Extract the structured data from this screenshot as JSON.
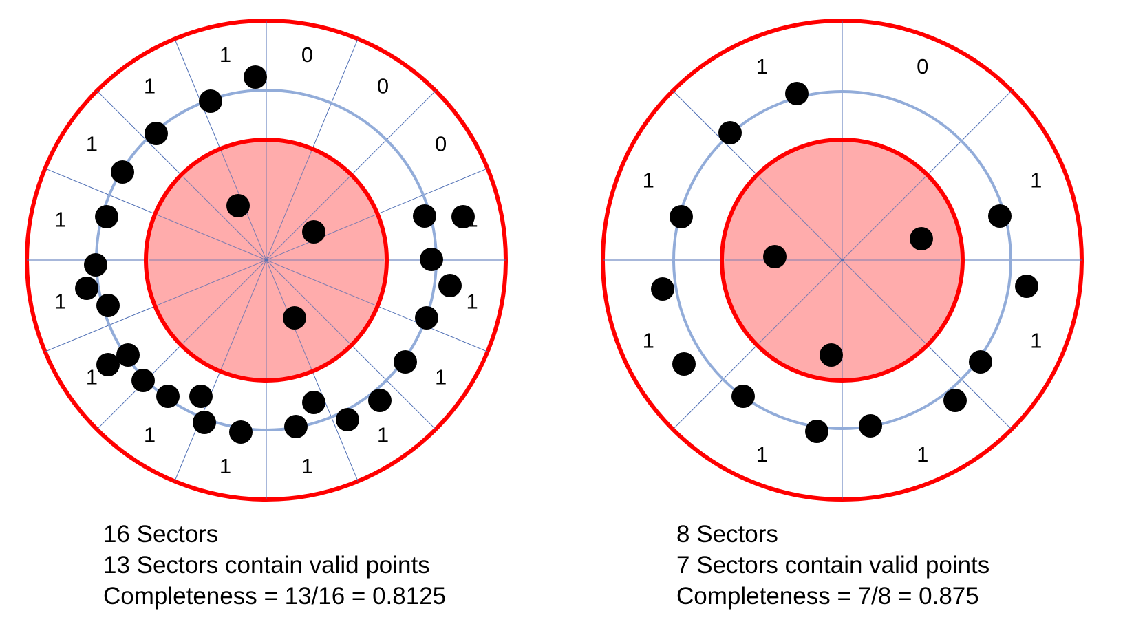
{
  "colors": {
    "outer_ring": "#ff0000",
    "inner_fill": "#ffa3a3",
    "valid_ring": "#92acd9",
    "sector_line": "#4f6fb5",
    "point": "#000000",
    "label": "#000000"
  },
  "diagrams": [
    {
      "id": "left",
      "sector_count": 16,
      "sector_values": [
        "0",
        "0",
        "0",
        "1",
        "1",
        "1",
        "1",
        "1",
        "1",
        "1",
        "1",
        "1",
        "1",
        "1",
        "1",
        "1"
      ],
      "captions": [
        "16 Sectors",
        "13 Sectors contain valid points",
        "Completeness = 13/16 = 0.8125"
      ]
    },
    {
      "id": "right",
      "sector_count": 8,
      "sector_values": [
        "0",
        "1",
        "1",
        "1",
        "1",
        "1",
        "1",
        "1"
      ],
      "captions": [
        "8 Sectors",
        "7 Sectors contain valid points",
        "Completeness = 7/8 = 0.875"
      ]
    }
  ]
}
